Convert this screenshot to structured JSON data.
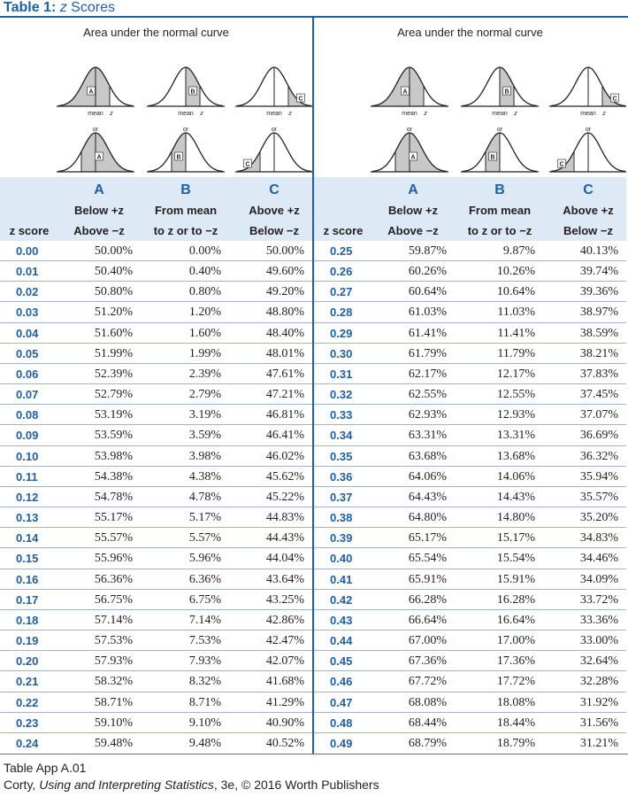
{
  "title": {
    "number": "Table 1:",
    "z": "z",
    "text": " Scores"
  },
  "curves": {
    "area_title": "Area under the normal curve",
    "label_A": "A",
    "label_B": "B",
    "label_C": "C",
    "or": "or",
    "mean_z": "mean",
    "z": "z",
    "neg_z": "-z",
    "neg_mean": "mean"
  },
  "headers": {
    "z_score": "z score",
    "col_A": {
      "letter": "A",
      "line1": "Below +z",
      "line2": "Above −z"
    },
    "col_B": {
      "letter": "B",
      "line1": "From mean",
      "line2": "to z or to −z"
    },
    "col_C": {
      "letter": "C",
      "line1": "Above +z",
      "line2": "Below −z"
    }
  },
  "left_rows": [
    [
      "0.00",
      "50.00%",
      "0.00%",
      "50.00%"
    ],
    [
      "0.01",
      "50.40%",
      "0.40%",
      "49.60%"
    ],
    [
      "0.02",
      "50.80%",
      "0.80%",
      "49.20%"
    ],
    [
      "0.03",
      "51.20%",
      "1.20%",
      "48.80%"
    ],
    [
      "0.04",
      "51.60%",
      "1.60%",
      "48.40%"
    ],
    [
      "0.05",
      "51.99%",
      "1.99%",
      "48.01%"
    ],
    [
      "0.06",
      "52.39%",
      "2.39%",
      "47.61%"
    ],
    [
      "0.07",
      "52.79%",
      "2.79%",
      "47.21%"
    ],
    [
      "0.08",
      "53.19%",
      "3.19%",
      "46.81%"
    ],
    [
      "0.09",
      "53.59%",
      "3.59%",
      "46.41%"
    ],
    [
      "0.10",
      "53.98%",
      "3.98%",
      "46.02%"
    ],
    [
      "0.11",
      "54.38%",
      "4.38%",
      "45.62%"
    ],
    [
      "0.12",
      "54.78%",
      "4.78%",
      "45.22%"
    ],
    [
      "0.13",
      "55.17%",
      "5.17%",
      "44.83%"
    ],
    [
      "0.14",
      "55.57%",
      "5.57%",
      "44.43%"
    ],
    [
      "0.15",
      "55.96%",
      "5.96%",
      "44.04%"
    ],
    [
      "0.16",
      "56.36%",
      "6.36%",
      "43.64%"
    ],
    [
      "0.17",
      "56.75%",
      "6.75%",
      "43.25%"
    ],
    [
      "0.18",
      "57.14%",
      "7.14%",
      "42.86%"
    ],
    [
      "0.19",
      "57.53%",
      "7.53%",
      "42.47%"
    ],
    [
      "0.20",
      "57.93%",
      "7.93%",
      "42.07%"
    ],
    [
      "0.21",
      "58.32%",
      "8.32%",
      "41.68%"
    ],
    [
      "0.22",
      "58.71%",
      "8.71%",
      "41.29%"
    ],
    [
      "0.23",
      "59.10%",
      "9.10%",
      "40.90%"
    ],
    [
      "0.24",
      "59.48%",
      "9.48%",
      "40.52%"
    ]
  ],
  "right_rows": [
    [
      "0.25",
      "59.87%",
      "9.87%",
      "40.13%"
    ],
    [
      "0.26",
      "60.26%",
      "10.26%",
      "39.74%"
    ],
    [
      "0.27",
      "60.64%",
      "10.64%",
      "39.36%"
    ],
    [
      "0.28",
      "61.03%",
      "11.03%",
      "38.97%"
    ],
    [
      "0.29",
      "61.41%",
      "11.41%",
      "38.59%"
    ],
    [
      "0.30",
      "61.79%",
      "11.79%",
      "38.21%"
    ],
    [
      "0.31",
      "62.17%",
      "12.17%",
      "37.83%"
    ],
    [
      "0.32",
      "62.55%",
      "12.55%",
      "37.45%"
    ],
    [
      "0.33",
      "62.93%",
      "12.93%",
      "37.07%"
    ],
    [
      "0.34",
      "63.31%",
      "13.31%",
      "36.69%"
    ],
    [
      "0.35",
      "63.68%",
      "13.68%",
      "36.32%"
    ],
    [
      "0.36",
      "64.06%",
      "14.06%",
      "35.94%"
    ],
    [
      "0.37",
      "64.43%",
      "14.43%",
      "35.57%"
    ],
    [
      "0.38",
      "64.80%",
      "14.80%",
      "35.20%"
    ],
    [
      "0.39",
      "65.17%",
      "15.17%",
      "34.83%"
    ],
    [
      "0.40",
      "65.54%",
      "15.54%",
      "34.46%"
    ],
    [
      "0.41",
      "65.91%",
      "15.91%",
      "34.09%"
    ],
    [
      "0.42",
      "66.28%",
      "16.28%",
      "33.72%"
    ],
    [
      "0.43",
      "66.64%",
      "16.64%",
      "33.36%"
    ],
    [
      "0.44",
      "67.00%",
      "17.00%",
      "33.00%"
    ],
    [
      "0.45",
      "67.36%",
      "17.36%",
      "32.64%"
    ],
    [
      "0.46",
      "67.72%",
      "17.72%",
      "32.28%"
    ],
    [
      "0.47",
      "68.08%",
      "18.08%",
      "31.92%"
    ],
    [
      "0.48",
      "68.44%",
      "18.44%",
      "31.56%"
    ],
    [
      "0.49",
      "68.79%",
      "18.79%",
      "31.21%"
    ]
  ],
  "footer": {
    "table_id": "Table App A.01",
    "author": "Corty, ",
    "book": "Using and Interpreting Statistics",
    "rest": ", 3e, © 2016 Worth Publishers"
  },
  "colors": {
    "accent": "#1f5fa2",
    "header_bg": "#dde9f5",
    "shade": "#c8c8c8"
  }
}
